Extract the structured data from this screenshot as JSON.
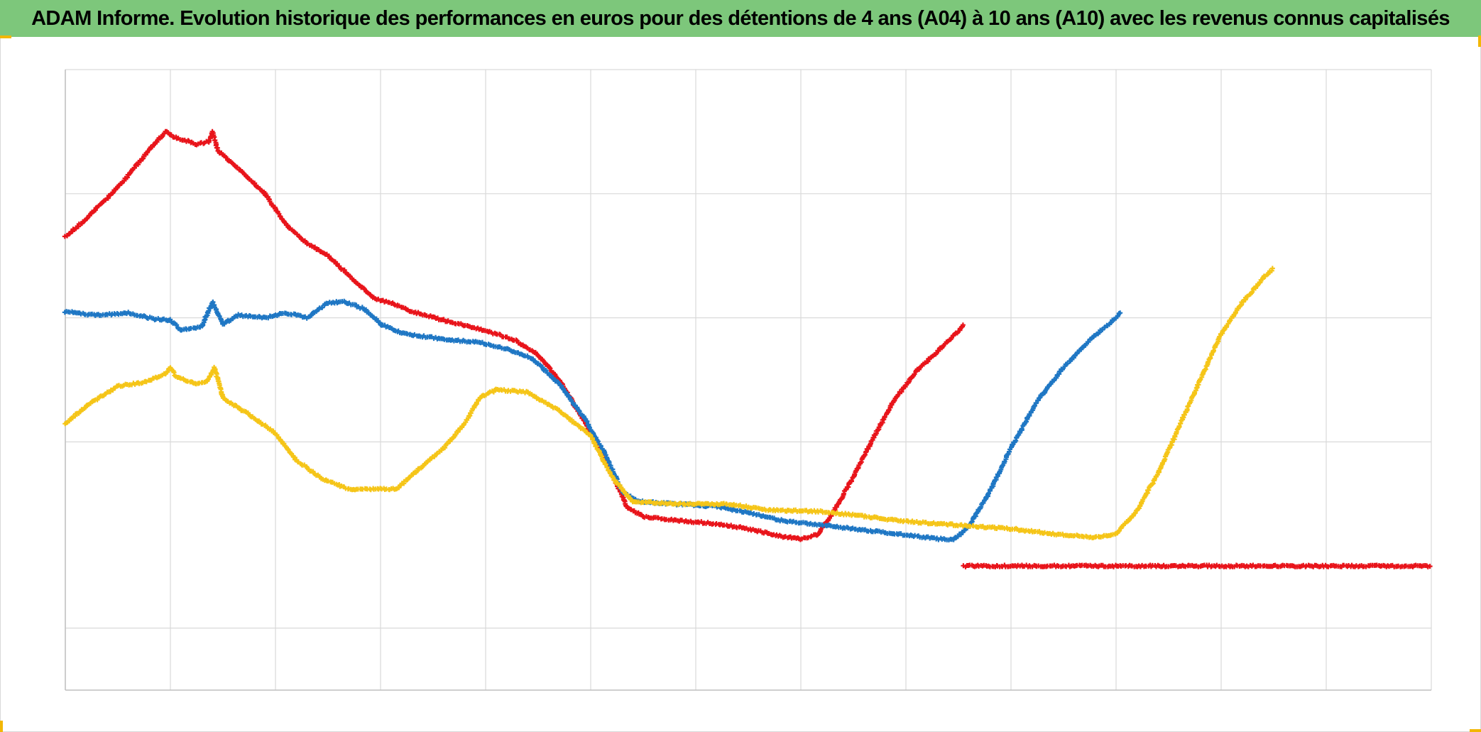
{
  "chart_data": {
    "type": "scatter",
    "title": "ADAM Informe. Evolution historique des performances en euros pour des détentions de 4 ans (A04) à 10 ans (A10) avec les revenus connus capitalisés",
    "xlabel": "",
    "ylabel": "",
    "xlim": [
      0,
      13
    ],
    "ylim": [
      -0.5,
      4.5
    ],
    "grid": true,
    "legend": "none",
    "x_gridlines": [
      0,
      1,
      2,
      3,
      4,
      5,
      6,
      7,
      8,
      9,
      10,
      11,
      12,
      13
    ],
    "y_gridlines": [
      0,
      1.5,
      2.5,
      3.5
    ],
    "series": [
      {
        "color": "#e8141b",
        "marker": "+",
        "points": [
          [
            0,
            3.15
          ],
          [
            0.2,
            3.3
          ],
          [
            0.5,
            3.55
          ],
          [
            0.75,
            3.8
          ],
          [
            0.95,
            4.0
          ],
          [
            1.05,
            3.95
          ],
          [
            1.25,
            3.9
          ],
          [
            1.37,
            3.92
          ],
          [
            1.4,
            4.0
          ],
          [
            1.45,
            3.85
          ],
          [
            1.65,
            3.7
          ],
          [
            1.9,
            3.5
          ],
          [
            2.1,
            3.25
          ],
          [
            2.3,
            3.1
          ],
          [
            2.5,
            3.0
          ],
          [
            2.75,
            2.8
          ],
          [
            2.95,
            2.65
          ],
          [
            3.1,
            2.62
          ],
          [
            3.3,
            2.55
          ],
          [
            3.6,
            2.48
          ],
          [
            3.85,
            2.43
          ],
          [
            4.1,
            2.37
          ],
          [
            4.3,
            2.31
          ],
          [
            4.5,
            2.2
          ],
          [
            4.7,
            2.0
          ],
          [
            4.9,
            1.72
          ],
          [
            5.1,
            1.42
          ],
          [
            5.25,
            1.15
          ],
          [
            5.35,
            0.97
          ],
          [
            5.5,
            0.9
          ],
          [
            5.8,
            0.87
          ],
          [
            6.2,
            0.84
          ],
          [
            6.5,
            0.8
          ],
          [
            6.8,
            0.74
          ],
          [
            7.0,
            0.72
          ],
          [
            7.15,
            0.75
          ],
          [
            7.3,
            0.92
          ],
          [
            7.5,
            1.22
          ],
          [
            7.7,
            1.55
          ],
          [
            7.9,
            1.85
          ],
          [
            8.1,
            2.07
          ],
          [
            8.3,
            2.23
          ],
          [
            8.5,
            2.39
          ],
          [
            8.55,
            2.45
          ]
        ]
      },
      {
        "color": "#e8141b",
        "marker": "+",
        "points": [
          [
            8.55,
            0.5
          ],
          [
            9.5,
            0.5
          ],
          [
            10.5,
            0.5
          ],
          [
            11.5,
            0.5
          ],
          [
            12.5,
            0.5
          ],
          [
            13,
            0.5
          ]
        ]
      },
      {
        "color": "#1f77c4",
        "marker": "+",
        "points": [
          [
            0,
            2.55
          ],
          [
            0.3,
            2.52
          ],
          [
            0.6,
            2.54
          ],
          [
            0.85,
            2.49
          ],
          [
            1.0,
            2.48
          ],
          [
            1.1,
            2.4
          ],
          [
            1.3,
            2.43
          ],
          [
            1.4,
            2.63
          ],
          [
            1.5,
            2.45
          ],
          [
            1.65,
            2.52
          ],
          [
            1.9,
            2.5
          ],
          [
            2.1,
            2.54
          ],
          [
            2.3,
            2.5
          ],
          [
            2.5,
            2.62
          ],
          [
            2.65,
            2.63
          ],
          [
            2.85,
            2.57
          ],
          [
            3.0,
            2.45
          ],
          [
            3.2,
            2.38
          ],
          [
            3.4,
            2.35
          ],
          [
            3.7,
            2.32
          ],
          [
            3.95,
            2.3
          ],
          [
            4.2,
            2.25
          ],
          [
            4.45,
            2.17
          ],
          [
            4.7,
            1.97
          ],
          [
            4.95,
            1.68
          ],
          [
            5.15,
            1.38
          ],
          [
            5.3,
            1.1
          ],
          [
            5.45,
            1.02
          ],
          [
            5.8,
            1.0
          ],
          [
            6.2,
            0.98
          ],
          [
            6.5,
            0.93
          ],
          [
            6.8,
            0.87
          ],
          [
            7.2,
            0.83
          ],
          [
            7.6,
            0.79
          ],
          [
            8.0,
            0.75
          ],
          [
            8.3,
            0.72
          ],
          [
            8.45,
            0.71
          ],
          [
            8.6,
            0.82
          ],
          [
            8.8,
            1.1
          ],
          [
            9.0,
            1.45
          ],
          [
            9.25,
            1.83
          ],
          [
            9.5,
            2.1
          ],
          [
            9.75,
            2.32
          ],
          [
            10.0,
            2.5
          ],
          [
            10.05,
            2.55
          ]
        ]
      },
      {
        "color": "#f5c518",
        "marker": "+",
        "points": [
          [
            0,
            1.65
          ],
          [
            0.25,
            1.82
          ],
          [
            0.5,
            1.95
          ],
          [
            0.75,
            1.98
          ],
          [
            0.95,
            2.05
          ],
          [
            1.0,
            2.1
          ],
          [
            1.05,
            2.03
          ],
          [
            1.25,
            1.96
          ],
          [
            1.35,
            1.99
          ],
          [
            1.42,
            2.1
          ],
          [
            1.5,
            1.85
          ],
          [
            1.75,
            1.72
          ],
          [
            2.0,
            1.57
          ],
          [
            2.2,
            1.35
          ],
          [
            2.45,
            1.2
          ],
          [
            2.7,
            1.12
          ],
          [
            3.0,
            1.12
          ],
          [
            3.15,
            1.12
          ],
          [
            3.35,
            1.27
          ],
          [
            3.6,
            1.45
          ],
          [
            3.8,
            1.65
          ],
          [
            3.95,
            1.86
          ],
          [
            4.1,
            1.92
          ],
          [
            4.4,
            1.9
          ],
          [
            4.7,
            1.75
          ],
          [
            5.0,
            1.55
          ],
          [
            5.2,
            1.22
          ],
          [
            5.4,
            1.02
          ],
          [
            5.8,
            1.0
          ],
          [
            6.3,
            1.0
          ],
          [
            6.7,
            0.95
          ],
          [
            7.2,
            0.94
          ],
          [
            7.6,
            0.9
          ],
          [
            8.0,
            0.86
          ],
          [
            8.5,
            0.83
          ],
          [
            9.0,
            0.8
          ],
          [
            9.4,
            0.76
          ],
          [
            9.8,
            0.73
          ],
          [
            10.0,
            0.76
          ],
          [
            10.2,
            0.95
          ],
          [
            10.4,
            1.25
          ],
          [
            10.6,
            1.62
          ],
          [
            10.8,
            2.0
          ],
          [
            11.0,
            2.37
          ],
          [
            11.2,
            2.62
          ],
          [
            11.4,
            2.82
          ],
          [
            11.5,
            2.9
          ]
        ]
      }
    ]
  }
}
